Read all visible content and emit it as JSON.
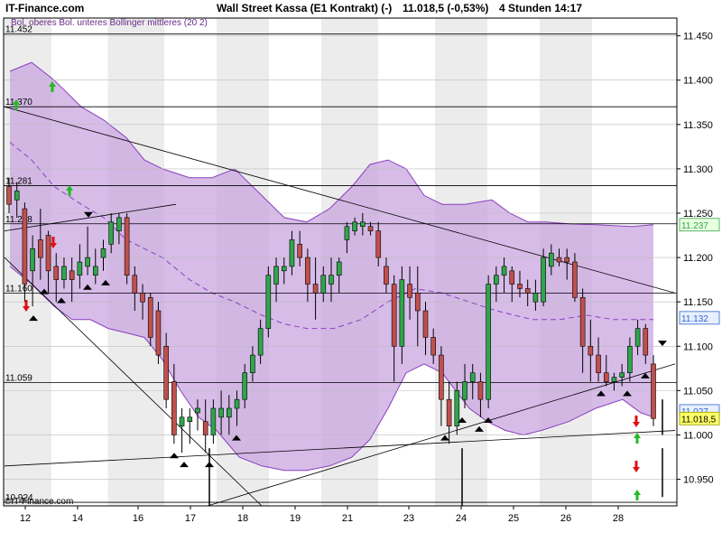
{
  "header": {
    "brand": "IT-Finance.com",
    "title": "Wall Street Kassa (E1 Kontrakt) (-)",
    "quote": "11.018,5 (-0,53%)",
    "timeframe": "4 Stunden  14:17"
  },
  "legend": "Bol. oberes Bol. unteres Bollinger mittleres (20 2)",
  "copyright": "©IT-Finance.com",
  "colors": {
    "bull": "#2fa64a",
    "bear": "#c0504d",
    "band_fill": "#c9a6e0",
    "band_line": "#8a3fc0",
    "shade": "#ececec",
    "box_green": "#e8ffe0",
    "box_blue": "#e6f0ff",
    "box_yellow": "#ffff66"
  },
  "chart_data": {
    "type": "candlestick",
    "title": "Wall Street Kassa (E1 Kontrakt) (-)",
    "ylim": [
      10920,
      11470
    ],
    "y_ticks": [
      "11.450",
      "11.400",
      "11.350",
      "11.300",
      "11.250",
      "11.200",
      "11.150",
      "11.100",
      "11.050",
      "11.000",
      "10.950"
    ],
    "x_ticks": [
      "12",
      "14",
      "16",
      "17",
      "18",
      "19",
      "21",
      "23",
      "24",
      "25",
      "26",
      "28"
    ],
    "levels": [
      {
        "label": "11.452",
        "value": 11452
      },
      {
        "label": "11.370",
        "value": 11370
      },
      {
        "label": "11.281",
        "value": 11281
      },
      {
        "label": "11.238",
        "value": 11238
      },
      {
        "label": "11.160",
        "value": 11160
      },
      {
        "label": "11.059",
        "value": 11059
      },
      {
        "label": "10.924",
        "value": 10924
      }
    ],
    "right_labels": [
      {
        "text": "11.237",
        "value": 11237,
        "style": "green"
      },
      {
        "text": "11.132",
        "value": 11132,
        "style": "blue"
      },
      {
        "text": "11.027",
        "value": 11027,
        "style": "blue"
      },
      {
        "text": "11.018,5",
        "value": 11018.5,
        "style": "yellow"
      }
    ],
    "candles": [
      [
        11280,
        11290,
        11250,
        11260
      ],
      [
        11265,
        11285,
        11245,
        11275
      ],
      [
        11255,
        11262,
        11150,
        11170
      ],
      [
        11185,
        11225,
        11145,
        11210
      ],
      [
        11220,
        11255,
        11175,
        11200
      ],
      [
        11225,
        11230,
        11160,
        11185
      ],
      [
        11190,
        11205,
        11150,
        11175
      ],
      [
        11175,
        11200,
        11165,
        11190
      ],
      [
        11185,
        11200,
        11150,
        11175
      ],
      [
        11180,
        11215,
        11165,
        11195
      ],
      [
        11190,
        11235,
        11180,
        11200
      ],
      [
        11180,
        11210,
        11170,
        11190
      ],
      [
        11200,
        11220,
        11185,
        11210
      ],
      [
        11215,
        11250,
        11205,
        11240
      ],
      [
        11230,
        11250,
        11215,
        11245
      ],
      [
        11245,
        11250,
        11170,
        11180
      ],
      [
        11180,
        11190,
        11140,
        11160
      ],
      [
        11160,
        11170,
        11130,
        11150
      ],
      [
        11155,
        11160,
        11100,
        11110
      ],
      [
        11140,
        11150,
        11080,
        11090
      ],
      [
        11100,
        11115,
        11030,
        11040
      ],
      [
        11060,
        11080,
        10990,
        11000
      ],
      [
        11010,
        11030,
        10980,
        11020
      ],
      [
        11015,
        11030,
        10990,
        11020
      ],
      [
        11025,
        11040,
        11005,
        11030
      ],
      [
        11015,
        11040,
        10980,
        11000
      ],
      [
        11000,
        11040,
        10990,
        11030
      ],
      [
        11020,
        11050,
        11000,
        11030
      ],
      [
        11020,
        11045,
        11000,
        11030
      ],
      [
        11030,
        11050,
        11010,
        11040
      ],
      [
        11040,
        11080,
        11030,
        11070
      ],
      [
        11070,
        11100,
        11060,
        11090
      ],
      [
        11090,
        11130,
        11080,
        11120
      ],
      [
        11120,
        11190,
        11110,
        11180
      ],
      [
        11170,
        11200,
        11150,
        11190
      ],
      [
        11185,
        11200,
        11170,
        11190
      ],
      [
        11190,
        11230,
        11180,
        11220
      ],
      [
        11215,
        11230,
        11190,
        11200
      ],
      [
        11200,
        11210,
        11150,
        11170
      ],
      [
        11170,
        11200,
        11130,
        11160
      ],
      [
        11160,
        11190,
        11150,
        11180
      ],
      [
        11170,
        11200,
        11150,
        11180
      ],
      [
        11180,
        11200,
        11160,
        11195
      ],
      [
        11220,
        11240,
        11205,
        11235
      ],
      [
        11230,
        11245,
        11225,
        11240
      ],
      [
        11235,
        11250,
        11225,
        11240
      ],
      [
        11235,
        11240,
        11225,
        11230
      ],
      [
        11230,
        11240,
        11190,
        11200
      ],
      [
        11190,
        11200,
        11160,
        11170
      ],
      [
        11170,
        11180,
        11060,
        11100
      ],
      [
        11100,
        11190,
        11080,
        11175
      ],
      [
        11170,
        11190,
        11130,
        11155
      ],
      [
        11160,
        11190,
        11100,
        11140
      ],
      [
        11140,
        11150,
        11090,
        11110
      ],
      [
        11110,
        11120,
        11080,
        11090
      ],
      [
        11090,
        11100,
        11010,
        11040
      ],
      [
        11040,
        11060,
        10990,
        11010
      ],
      [
        11010,
        11060,
        11000,
        11050
      ],
      [
        11040,
        11080,
        11030,
        11060
      ],
      [
        11060,
        11080,
        11040,
        11070
      ],
      [
        11060,
        11070,
        11020,
        11040
      ],
      [
        11040,
        11180,
        11030,
        11170
      ],
      [
        11170,
        11190,
        11150,
        11180
      ],
      [
        11180,
        11200,
        11160,
        11190
      ],
      [
        11185,
        11190,
        11150,
        11170
      ],
      [
        11170,
        11185,
        11155,
        11165
      ],
      [
        11165,
        11175,
        11145,
        11160
      ],
      [
        11150,
        11175,
        11140,
        11160
      ],
      [
        11150,
        11210,
        11145,
        11200
      ],
      [
        11190,
        11215,
        11180,
        11205
      ],
      [
        11200,
        11210,
        11190,
        11195
      ],
      [
        11200,
        11210,
        11175,
        11195
      ],
      [
        11195,
        11205,
        11150,
        11155
      ],
      [
        11155,
        11165,
        11070,
        11100
      ],
      [
        11100,
        11130,
        11060,
        11090
      ],
      [
        11090,
        11110,
        11060,
        11070
      ],
      [
        11070,
        11090,
        11055,
        11060
      ],
      [
        11060,
        11070,
        11050,
        11065
      ],
      [
        11065,
        11080,
        11055,
        11070
      ],
      [
        11070,
        11110,
        11060,
        11100
      ],
      [
        11100,
        11130,
        11090,
        11120
      ],
      [
        11120,
        11125,
        11080,
        11090
      ],
      [
        11080,
        11090,
        11010,
        11018.5
      ]
    ],
    "upper_band": [
      [
        11,
        11410
      ],
      [
        35,
        11420
      ],
      [
        60,
        11400
      ],
      [
        90,
        11370
      ],
      [
        115,
        11355
      ],
      [
        140,
        11335
      ],
      [
        160,
        11310
      ],
      [
        180,
        11300
      ],
      [
        210,
        11290
      ],
      [
        235,
        11290
      ],
      [
        260,
        11300
      ],
      [
        290,
        11270
      ],
      [
        315,
        11245
      ],
      [
        340,
        11240
      ],
      [
        365,
        11255
      ],
      [
        390,
        11280
      ],
      [
        410,
        11305
      ],
      [
        430,
        11310
      ],
      [
        450,
        11300
      ],
      [
        470,
        11270
      ],
      [
        490,
        11260
      ],
      [
        515,
        11260
      ],
      [
        545,
        11265
      ],
      [
        565,
        11250
      ],
      [
        585,
        11240
      ],
      [
        605,
        11240
      ],
      [
        630,
        11238
      ],
      [
        660,
        11237
      ],
      [
        700,
        11235
      ],
      [
        724,
        11237
      ]
    ],
    "lower_band": [
      [
        11,
        11190
      ],
      [
        35,
        11170
      ],
      [
        60,
        11145
      ],
      [
        80,
        11130
      ],
      [
        100,
        11130
      ],
      [
        120,
        11120
      ],
      [
        140,
        11115
      ],
      [
        160,
        11110
      ],
      [
        180,
        11085
      ],
      [
        200,
        11050
      ],
      [
        220,
        11020
      ],
      [
        240,
        11005
      ],
      [
        265,
        10975
      ],
      [
        290,
        10965
      ],
      [
        315,
        10960
      ],
      [
        340,
        10960
      ],
      [
        365,
        10965
      ],
      [
        390,
        10975
      ],
      [
        410,
        10995
      ],
      [
        430,
        11030
      ],
      [
        450,
        11070
      ],
      [
        470,
        11080
      ],
      [
        490,
        11070
      ],
      [
        505,
        11050
      ],
      [
        520,
        11030
      ],
      [
        540,
        11015
      ],
      [
        560,
        11005
      ],
      [
        580,
        11000
      ],
      [
        600,
        11005
      ],
      [
        630,
        11015
      ],
      [
        660,
        11030
      ],
      [
        690,
        11040
      ],
      [
        710,
        11025
      ],
      [
        724,
        11020
      ]
    ],
    "middle_band": [
      [
        11,
        11330
      ],
      [
        35,
        11310
      ],
      [
        60,
        11280
      ],
      [
        90,
        11260
      ],
      [
        115,
        11245
      ],
      [
        140,
        11220
      ],
      [
        160,
        11210
      ],
      [
        180,
        11200
      ],
      [
        210,
        11175
      ],
      [
        235,
        11160
      ],
      [
        260,
        11150
      ],
      [
        290,
        11135
      ],
      [
        315,
        11125
      ],
      [
        340,
        11120
      ],
      [
        370,
        11120
      ],
      [
        400,
        11130
      ],
      [
        430,
        11150
      ],
      [
        460,
        11165
      ],
      [
        490,
        11160
      ],
      [
        520,
        11150
      ],
      [
        550,
        11140
      ],
      [
        570,
        11135
      ],
      [
        590,
        11130
      ],
      [
        620,
        11130
      ],
      [
        650,
        11135
      ],
      [
        680,
        11130
      ],
      [
        700,
        11130
      ],
      [
        724,
        11130
      ]
    ],
    "trend_lines": [
      [
        [
          5,
          11370
        ],
        [
          748,
          11160
        ]
      ],
      [
        [
          5,
          11230
        ],
        [
          195,
          11260
        ]
      ],
      [
        [
          5,
          11200
        ],
        [
          290,
          10920
        ]
      ],
      [
        [
          5,
          10965
        ],
        [
          748,
          11005
        ]
      ],
      [
        [
          230,
          10920
        ],
        [
          748,
          11080
        ]
      ]
    ],
    "markers": [
      {
        "x": 37,
        "kind": "black-up"
      },
      {
        "x": 49,
        "kind": "black-up"
      },
      {
        "x": 68,
        "kind": "black-up"
      },
      {
        "x": 97,
        "kind": "black-up"
      },
      {
        "x": 98,
        "kind": "black-down"
      },
      {
        "x": 117,
        "kind": "black-up"
      },
      {
        "x": 193,
        "kind": "black-up"
      },
      {
        "x": 204,
        "kind": "black-up"
      },
      {
        "x": 232,
        "kind": "black-up"
      },
      {
        "x": 262,
        "kind": "black-up"
      },
      {
        "x": 493,
        "kind": "black-up"
      },
      {
        "x": 512,
        "kind": "black-up"
      },
      {
        "x": 531,
        "kind": "black-up"
      },
      {
        "x": 541,
        "kind": "black-up"
      },
      {
        "x": 666,
        "kind": "black-up"
      },
      {
        "x": 695,
        "kind": "black-up"
      },
      {
        "x": 715,
        "kind": "black-up"
      },
      {
        "x": 734,
        "kind": "black-down"
      },
      {
        "x": 18,
        "kind": "green-up"
      },
      {
        "x": 58,
        "kind": "green-up"
      },
      {
        "x": 77,
        "kind": "green-up"
      },
      {
        "x": 706,
        "kind": "green-up"
      },
      {
        "x": 706,
        "kind": "green-up-low"
      },
      {
        "x": 29,
        "kind": "red-down"
      },
      {
        "x": 59,
        "kind": "red-down"
      },
      {
        "x": 705,
        "kind": "red-down"
      },
      {
        "x": 705,
        "kind": "red-down-low"
      }
    ],
    "stems": [
      {
        "x": 232,
        "from": 10920,
        "to": 10985
      },
      {
        "x": 512,
        "from": 10920,
        "to": 10985
      },
      {
        "x": 734,
        "from": 10930,
        "to": 10985
      },
      {
        "x": 734,
        "from": 11040,
        "to": 11000
      }
    ]
  }
}
